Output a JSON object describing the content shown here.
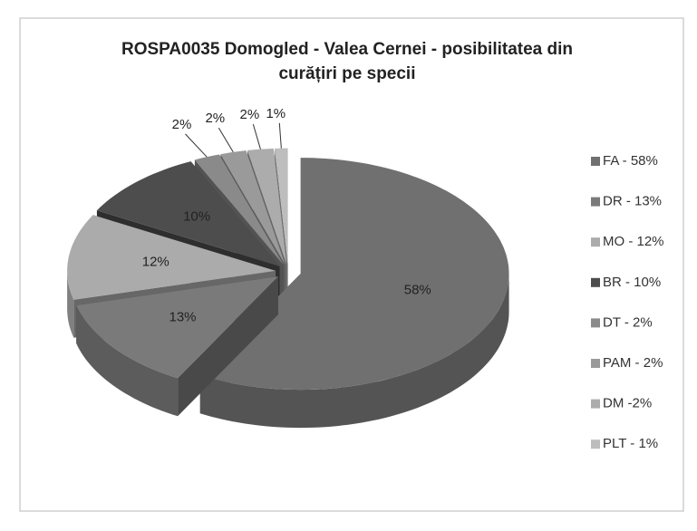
{
  "chart_data": {
    "type": "pie3d",
    "title": [
      "ROSPA0035 Domogled - Valea Cernei - posibilitatea din",
      "curățiri pe specii"
    ],
    "categories": [
      "FA - 58%",
      "DR - 13%",
      "MO - 12%",
      "BR - 10%",
      "DT - 2%",
      "PAM - 2%",
      "DM -2%",
      "PLT - 1%"
    ],
    "values": [
      58,
      13,
      12,
      10,
      2,
      2,
      2,
      1
    ],
    "value_labels": [
      "58%",
      "13%",
      "12%",
      "10%",
      "2%",
      "2%",
      "2%",
      "1%"
    ],
    "colors": [
      "#707070",
      "#7a7a7a",
      "#ababab",
      "#4d4d4d",
      "#8a8a8a",
      "#9a9a9a",
      "#acacac",
      "#bdbdbd"
    ],
    "legend": "right"
  }
}
